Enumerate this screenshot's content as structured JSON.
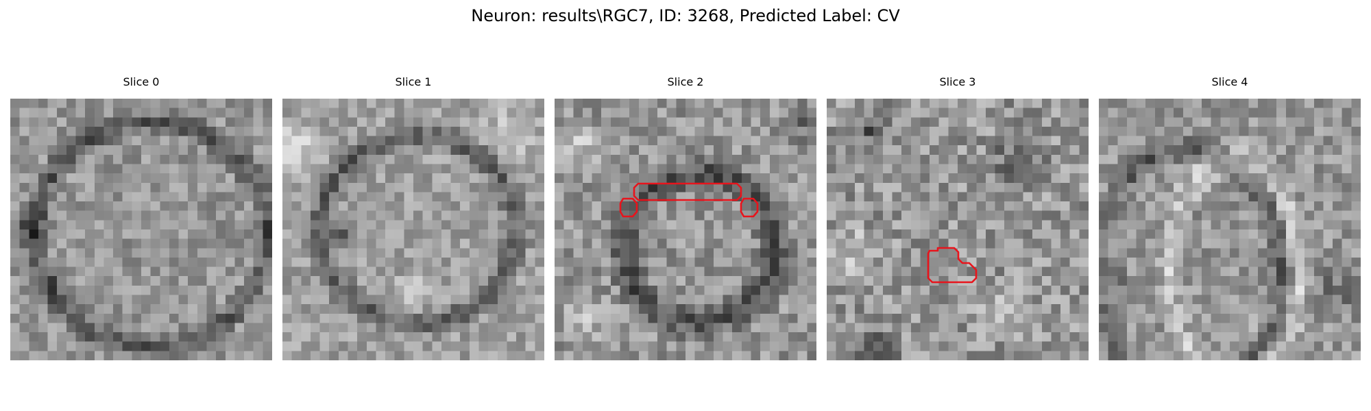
{
  "figure": {
    "title": "Neuron: results\\RGC7, ID: 3268, Predicted Label: CV",
    "background": "#ffffff"
  },
  "image": {
    "colormap": "gray",
    "grid_size": 28,
    "contour_color": "#e8141c"
  },
  "panels": [
    {
      "title": "Slice 0",
      "contour_count": 0
    },
    {
      "title": "Slice 1",
      "contour_count": 0
    },
    {
      "title": "Slice 2",
      "contour_count": 3
    },
    {
      "title": "Slice 3",
      "contour_count": 1
    },
    {
      "title": "Slice 4",
      "contour_count": 0
    }
  ]
}
